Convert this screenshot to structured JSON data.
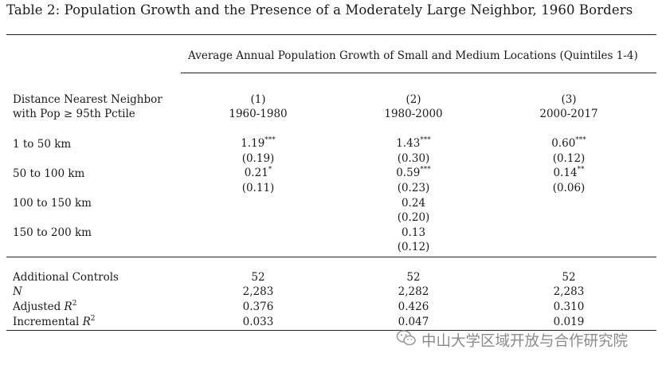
{
  "caption": "Table 2: Population Growth and the Presence of a Moderately Large Neighbor, 1960 Borders",
  "super_header": "Average Annual Population Growth of Small and Medium Locations (Quintiles 1-4)",
  "stub_header": {
    "line1": "Distance Nearest Neighbor",
    "line2": "with Pop ≥ 95th Pctile"
  },
  "columns": [
    {
      "number": "(1)",
      "period": "1960-1980"
    },
    {
      "number": "(2)",
      "period": "1980-2000"
    },
    {
      "number": "(3)",
      "period": "2000-2017"
    }
  ],
  "rows": [
    {
      "label": "1 to 50 km",
      "coef": [
        "1.19",
        "1.43",
        "0.60"
      ],
      "stars": [
        "***",
        "***",
        "***"
      ],
      "se": [
        "(0.19)",
        "(0.30)",
        "(0.12)"
      ]
    },
    {
      "label": "50 to 100 km",
      "coef": [
        "0.21",
        "0.59",
        "0.14"
      ],
      "stars": [
        "*",
        "***",
        "**"
      ],
      "se": [
        "(0.11)",
        "(0.23)",
        "(0.06)"
      ]
    },
    {
      "label": "100 to 150 km",
      "coef": [
        "",
        "0.24",
        ""
      ],
      "stars": [
        "",
        "",
        ""
      ],
      "se": [
        "",
        "(0.20)",
        ""
      ]
    },
    {
      "label": "150 to 200 km",
      "coef": [
        "",
        "0.13",
        ""
      ],
      "stars": [
        "",
        "",
        ""
      ],
      "se": [
        "",
        "(0.12)",
        ""
      ]
    }
  ],
  "stats": [
    {
      "label": "Additional Controls",
      "values": [
        "52",
        "52",
        "52"
      ]
    },
    {
      "label": "N",
      "values": [
        "2,283",
        "2,282",
        "2,283"
      ]
    },
    {
      "label_prefix": "Adjusted ",
      "label_var": "R",
      "label_sup": "2",
      "values": [
        "0.376",
        "0.426",
        "0.310"
      ]
    },
    {
      "label_prefix": "Incremental ",
      "label_var": "R",
      "label_sup": "2",
      "values": [
        "0.033",
        "0.047",
        "0.019"
      ]
    }
  ],
  "watermark": {
    "text": "中山大学区域开放与合作研究院",
    "icon": "wechat-icon"
  }
}
